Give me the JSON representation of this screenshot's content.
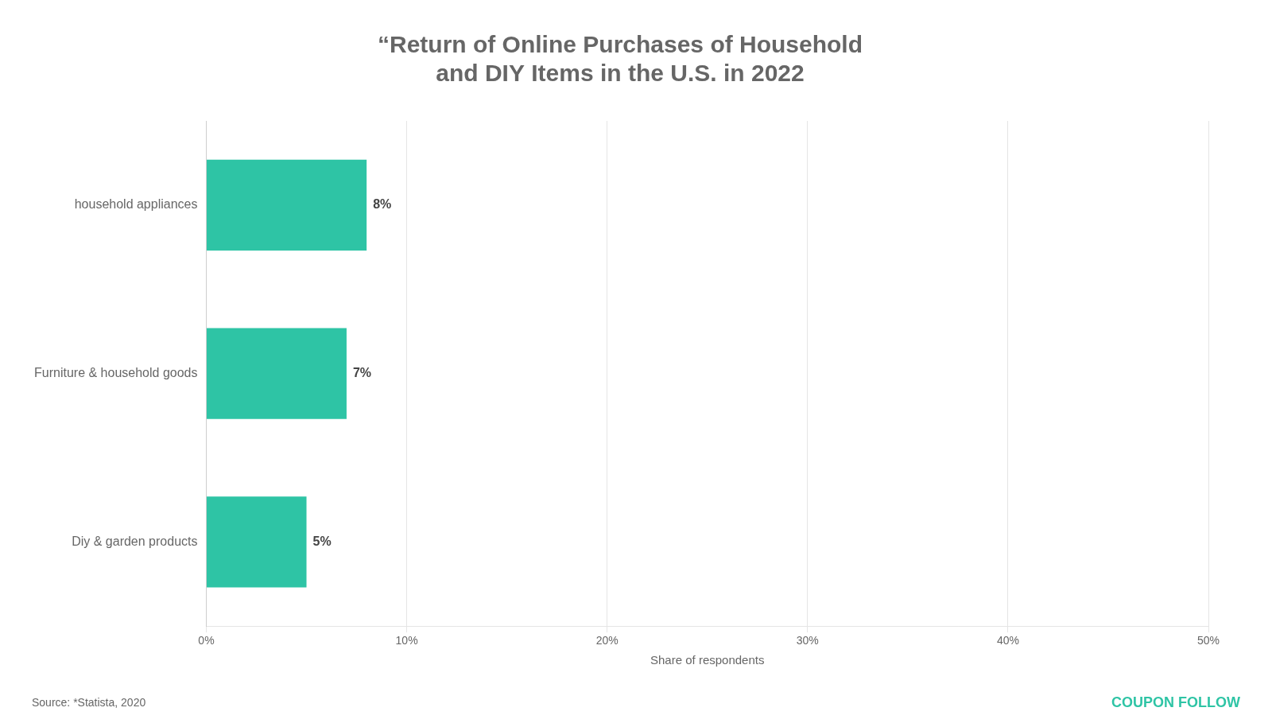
{
  "chart_data": {
    "type": "bar",
    "orientation": "horizontal",
    "title": [
      "“Return of Online Purchases of Household",
      "and DIY Items in the U.S. in 2022"
    ],
    "categories": [
      "Diy & garden products",
      "Furniture & household goods",
      "household appliances"
    ],
    "values": [
      5,
      7,
      8
    ],
    "value_labels": [
      "5%",
      "7%",
      "8%"
    ],
    "data_labels": true,
    "color": "#2ec4a5",
    "xlabel": "Share of respondents",
    "xlim": [
      0,
      50
    ],
    "xticks": [
      {
        "value": 0,
        "label": "0%"
      },
      {
        "value": 10,
        "label": "10%"
      },
      {
        "value": 20,
        "label": "20%"
      },
      {
        "value": 30,
        "label": "30%"
      },
      {
        "value": 40,
        "label": "40%"
      },
      {
        "value": 50,
        "label": "50%"
      }
    ],
    "grid": "x",
    "annotations": [
      {
        "text": "Source: *Statista, 2020"
      },
      {
        "text": "COUPON"
      },
      {
        "text": "FOLLOW"
      }
    ]
  }
}
